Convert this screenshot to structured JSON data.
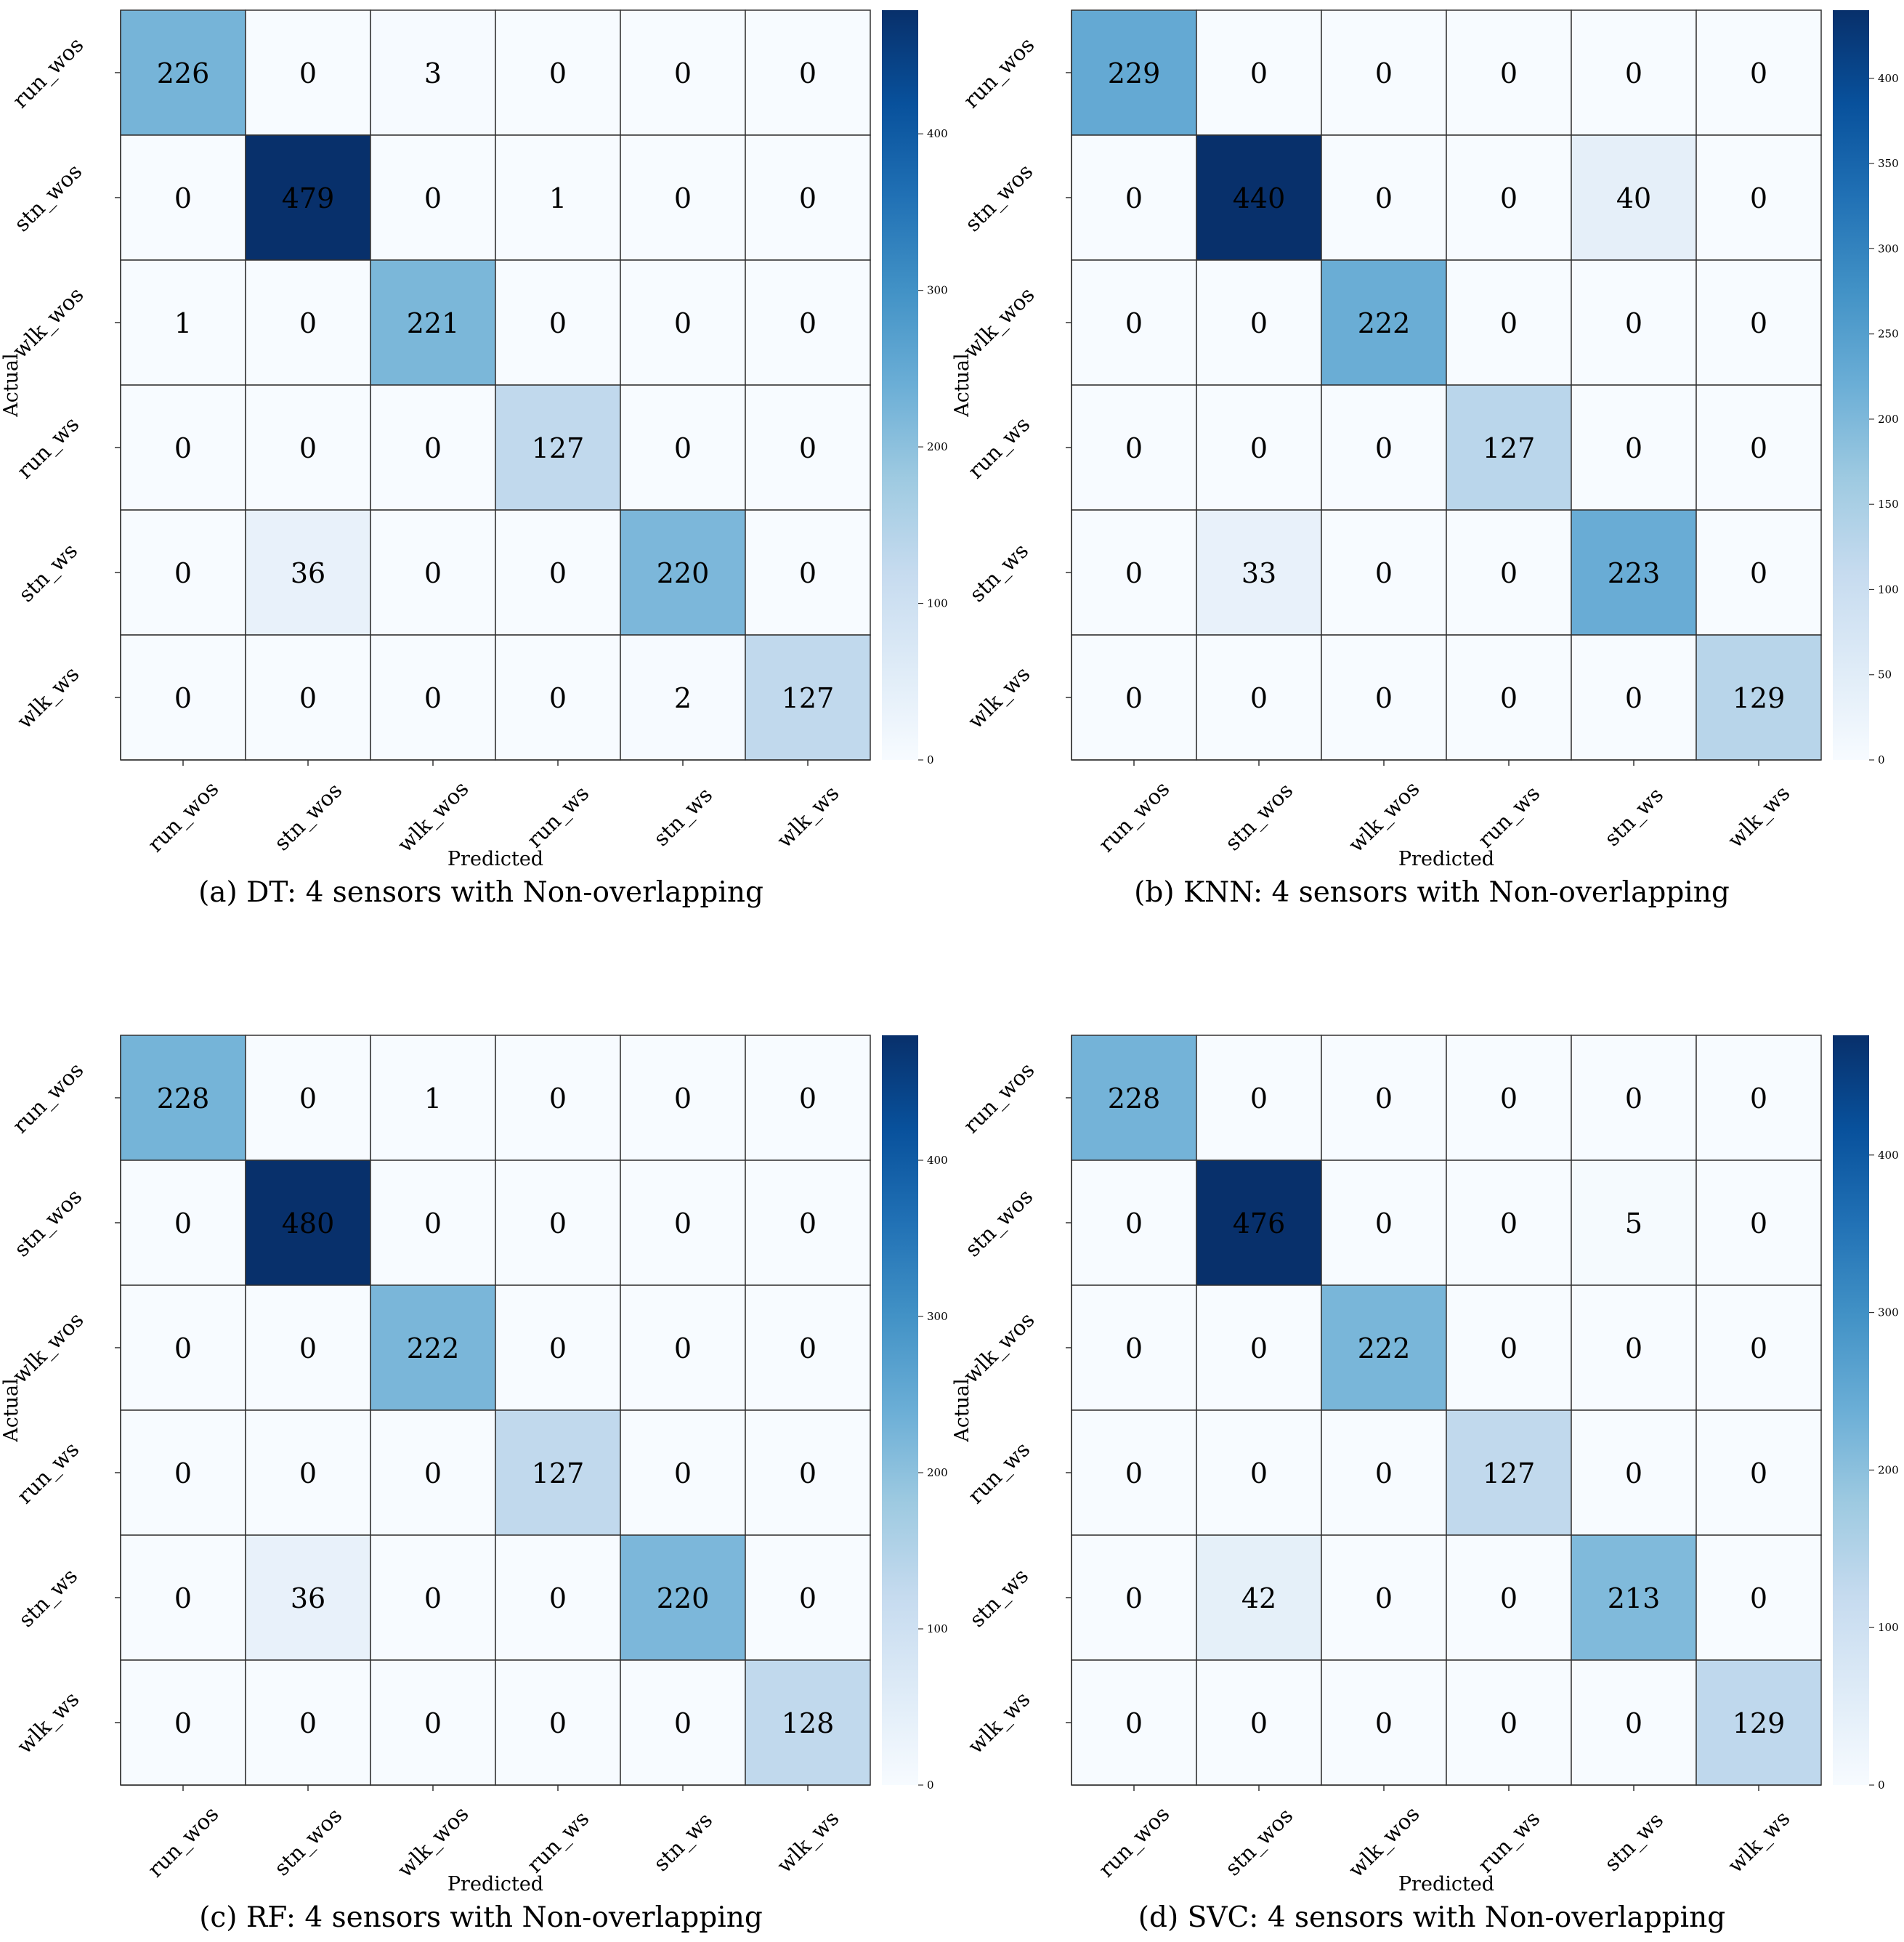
{
  "figure": {
    "x_axis_label": "Predicted",
    "y_axis_label": "Actual",
    "class_labels": [
      "run_wos",
      "stn_wos",
      "wlk_wos",
      "run_ws",
      "stn_ws",
      "wlk_ws"
    ]
  },
  "chart_data": [
    {
      "type": "heatmap",
      "caption": "(a) DT: 4 sensors with Non-overlapping",
      "xlabel": "Predicted",
      "ylabel": "Actual",
      "x_categories": [
        "run_wos",
        "stn_wos",
        "wlk_wos",
        "run_ws",
        "stn_ws",
        "wlk_ws"
      ],
      "y_categories": [
        "run_wos",
        "stn_wos",
        "wlk_wos",
        "run_ws",
        "stn_ws",
        "wlk_ws"
      ],
      "matrix": [
        [
          226,
          0,
          3,
          0,
          0,
          0
        ],
        [
          0,
          479,
          0,
          1,
          0,
          0
        ],
        [
          1,
          0,
          221,
          0,
          0,
          0
        ],
        [
          0,
          0,
          0,
          127,
          0,
          0
        ],
        [
          0,
          36,
          0,
          0,
          220,
          0
        ],
        [
          0,
          0,
          0,
          0,
          2,
          127
        ]
      ],
      "colormap": "Blues",
      "colorbar_range": [
        0,
        479
      ],
      "colorbar_ticks": [
        0,
        100,
        200,
        300,
        400
      ]
    },
    {
      "type": "heatmap",
      "caption": "(b) KNN: 4 sensors with Non-overlapping",
      "xlabel": "Predicted",
      "ylabel": "Actual",
      "x_categories": [
        "run_wos",
        "stn_wos",
        "wlk_wos",
        "run_ws",
        "stn_ws",
        "wlk_ws"
      ],
      "y_categories": [
        "run_wos",
        "stn_wos",
        "wlk_wos",
        "run_ws",
        "stn_ws",
        "wlk_ws"
      ],
      "matrix": [
        [
          229,
          0,
          0,
          0,
          0,
          0
        ],
        [
          0,
          440,
          0,
          0,
          40,
          0
        ],
        [
          0,
          0,
          222,
          0,
          0,
          0
        ],
        [
          0,
          0,
          0,
          127,
          0,
          0
        ],
        [
          0,
          33,
          0,
          0,
          223,
          0
        ],
        [
          0,
          0,
          0,
          0,
          0,
          129
        ]
      ],
      "colormap": "Blues",
      "colorbar_range": [
        0,
        440
      ],
      "colorbar_ticks": [
        0,
        50,
        100,
        150,
        200,
        250,
        300,
        350,
        400
      ]
    },
    {
      "type": "heatmap",
      "caption": "(c) RF: 4 sensors with Non-overlapping",
      "xlabel": "Predicted",
      "ylabel": "Actual",
      "x_categories": [
        "run_wos",
        "stn_wos",
        "wlk_wos",
        "run_ws",
        "stn_ws",
        "wlk_ws"
      ],
      "y_categories": [
        "run_wos",
        "stn_wos",
        "wlk_wos",
        "run_ws",
        "stn_ws",
        "wlk_ws"
      ],
      "matrix": [
        [
          228,
          0,
          1,
          0,
          0,
          0
        ],
        [
          0,
          480,
          0,
          0,
          0,
          0
        ],
        [
          0,
          0,
          222,
          0,
          0,
          0
        ],
        [
          0,
          0,
          0,
          127,
          0,
          0
        ],
        [
          0,
          36,
          0,
          0,
          220,
          0
        ],
        [
          0,
          0,
          0,
          0,
          0,
          128
        ]
      ],
      "colormap": "Blues",
      "colorbar_range": [
        0,
        480
      ],
      "colorbar_ticks": [
        0,
        100,
        200,
        300,
        400
      ]
    },
    {
      "type": "heatmap",
      "caption": "(d) SVC: 4 sensors with Non-overlapping",
      "xlabel": "Predicted",
      "ylabel": "Actual",
      "x_categories": [
        "run_wos",
        "stn_wos",
        "wlk_wos",
        "run_ws",
        "stn_ws",
        "wlk_ws"
      ],
      "y_categories": [
        "run_wos",
        "stn_wos",
        "wlk_wos",
        "run_ws",
        "stn_ws",
        "wlk_ws"
      ],
      "matrix": [
        [
          228,
          0,
          0,
          0,
          0,
          0
        ],
        [
          0,
          476,
          0,
          0,
          5,
          0
        ],
        [
          0,
          0,
          222,
          0,
          0,
          0
        ],
        [
          0,
          0,
          0,
          127,
          0,
          0
        ],
        [
          0,
          42,
          0,
          0,
          213,
          0
        ],
        [
          0,
          0,
          0,
          0,
          0,
          129
        ]
      ],
      "colormap": "Blues",
      "colorbar_range": [
        0,
        476
      ],
      "colorbar_ticks": [
        0,
        100,
        200,
        300,
        400
      ]
    }
  ]
}
